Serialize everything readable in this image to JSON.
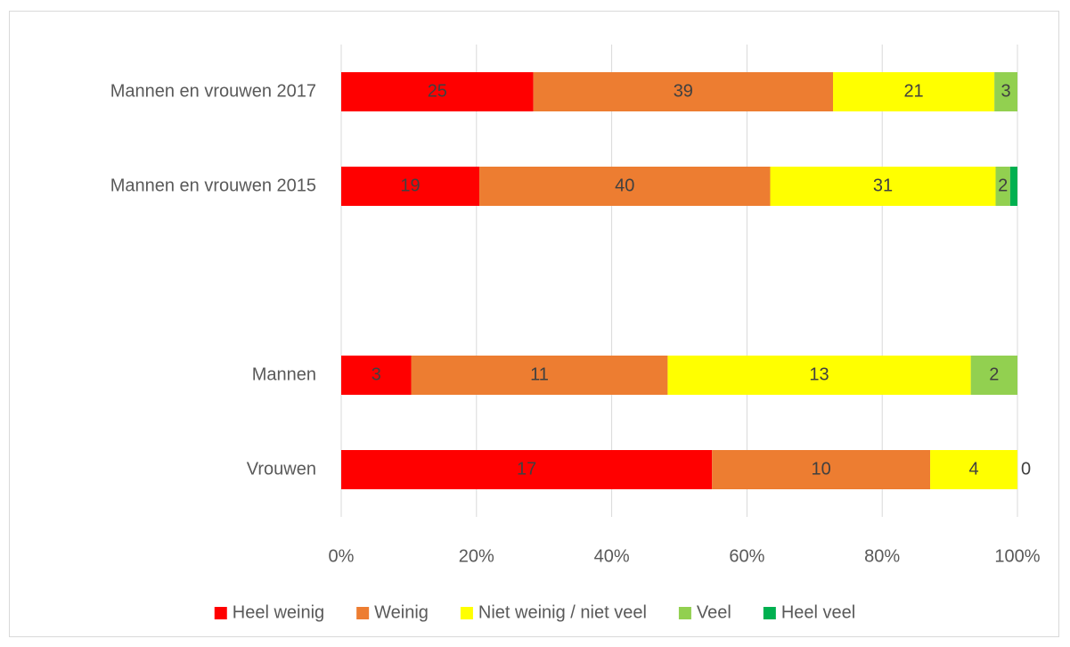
{
  "chart_data": {
    "type": "bar",
    "orientation": "horizontal",
    "stacking": "percent",
    "categories": [
      "Mannen en vrouwen 2017",
      "Mannen en vrouwen 2015",
      null,
      "Mannen",
      "Vrouwen"
    ],
    "series": [
      {
        "name": "Heel weinig",
        "color": "#ff0000",
        "values": [
          25,
          19,
          null,
          3,
          17
        ]
      },
      {
        "name": "Weinig",
        "color": "#ed7d31",
        "values": [
          39,
          40,
          null,
          11,
          10
        ]
      },
      {
        "name": "Niet weinig / niet veel",
        "color": "#ffff00",
        "values": [
          21,
          31,
          null,
          13,
          4
        ]
      },
      {
        "name": "Veel",
        "color": "#92d050",
        "values": [
          3,
          2,
          null,
          2,
          0
        ]
      },
      {
        "name": "Heel veel",
        "color": "#00b050",
        "values": [
          0,
          1,
          null,
          0,
          0
        ],
        "data_labels": false
      }
    ],
    "xlim": [
      0,
      100
    ],
    "xticks": [
      {
        "value": 0,
        "label": "0%"
      },
      {
        "value": 20,
        "label": "20%"
      },
      {
        "value": 40,
        "label": "40%"
      },
      {
        "value": 60,
        "label": "60%"
      },
      {
        "value": 80,
        "label": "80%"
      },
      {
        "value": 100,
        "label": "100%"
      }
    ],
    "grid": true,
    "legend": "bottom"
  }
}
